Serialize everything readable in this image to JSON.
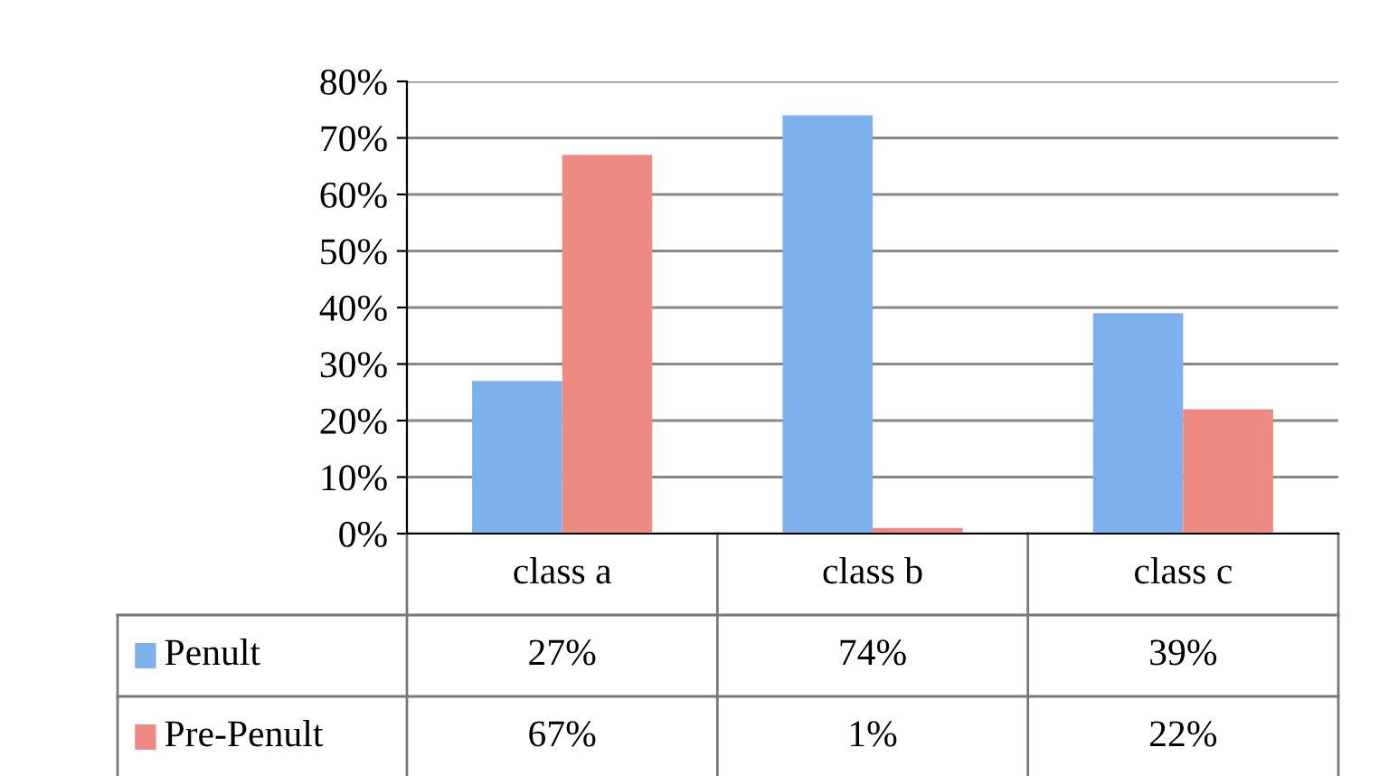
{
  "chart_data": {
    "type": "bar",
    "categories": [
      "class a",
      "class b",
      "class c"
    ],
    "series": [
      {
        "name": "Penult",
        "color": "#7fb0ee",
        "values": [
          27,
          74,
          39
        ],
        "value_labels": [
          "27%",
          "74%",
          "39%"
        ]
      },
      {
        "name": "Pre-Penult",
        "color": "#ee8a82",
        "values": [
          67,
          1,
          22
        ],
        "value_labels": [
          "67%",
          "1%",
          "22%"
        ]
      }
    ],
    "ylim": [
      0,
      80
    ],
    "yticks": [
      {
        "value": 0,
        "label": "0%"
      },
      {
        "value": 10,
        "label": "10%"
      },
      {
        "value": 20,
        "label": "20%"
      },
      {
        "value": 30,
        "label": "30%"
      },
      {
        "value": 40,
        "label": "40%"
      },
      {
        "value": 50,
        "label": "50%"
      },
      {
        "value": 60,
        "label": "60%"
      },
      {
        "value": 70,
        "label": "70%"
      },
      {
        "value": 80,
        "label": "80%"
      }
    ],
    "grid": "y",
    "legend": "bottom"
  }
}
